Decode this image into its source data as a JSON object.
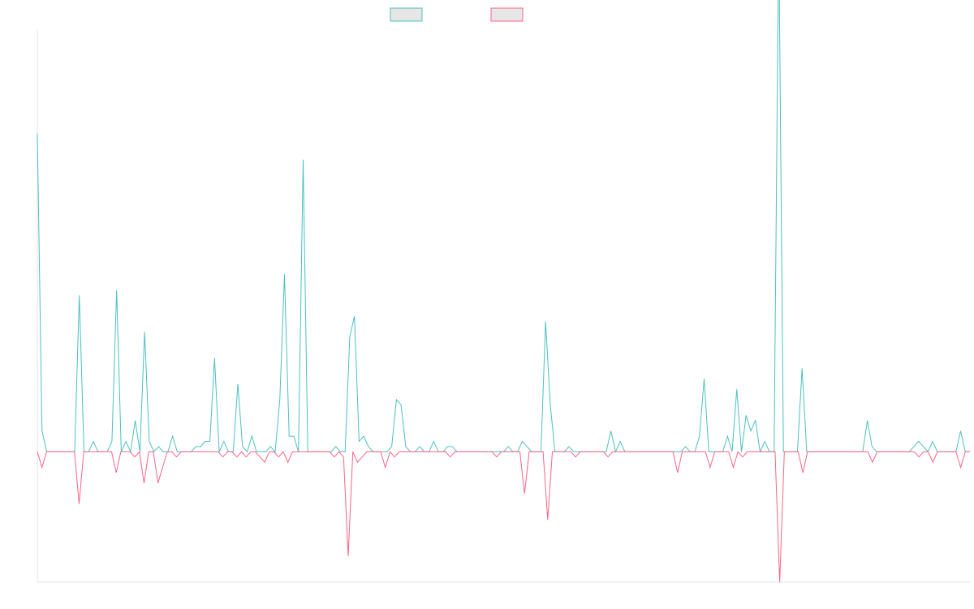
{
  "chart_data": {
    "type": "line",
    "title": "",
    "xlabel": "",
    "ylabel": "",
    "ylim": [
      -25,
      81
    ],
    "grid": false,
    "legend": "top-center",
    "colors": {
      "series_a": "#4bc0c0",
      "series_b": "#ff6384",
      "legend_fill": "#e6e6e6",
      "axis": "#e6e6e6"
    },
    "series": [
      {
        "values": [
          61,
          4,
          0,
          0,
          0,
          0,
          0,
          0,
          0,
          30,
          0,
          0,
          2,
          0,
          0,
          0,
          2,
          31,
          0,
          2,
          0,
          6,
          0,
          23,
          2,
          0,
          1,
          0,
          0,
          3,
          0,
          0,
          0,
          0,
          1,
          1,
          2,
          2,
          18,
          0,
          2,
          0,
          0,
          13,
          1,
          0,
          3,
          0,
          0,
          0,
          1,
          0,
          10,
          34,
          3,
          3,
          0,
          56,
          0,
          0,
          0,
          0,
          0,
          0,
          1,
          0,
          0,
          22,
          26,
          2,
          3,
          1,
          0,
          0,
          0,
          0,
          1,
          10,
          9,
          1,
          0,
          0,
          1,
          0,
          0,
          2,
          0,
          0,
          1,
          1,
          0,
          0,
          0,
          0,
          0,
          0,
          0,
          0,
          0,
          0,
          0,
          1,
          0,
          0,
          2,
          1,
          0,
          0,
          0,
          25,
          9,
          0,
          0,
          0,
          1,
          0,
          0,
          0,
          0,
          0,
          0,
          0,
          0,
          4,
          0,
          2,
          0,
          0,
          0,
          0,
          0,
          0,
          0,
          0,
          0,
          0,
          0,
          0,
          0,
          1,
          0,
          0,
          3,
          14,
          0,
          0,
          0,
          0,
          3,
          0,
          12,
          0,
          7,
          4,
          6,
          0,
          2,
          0,
          0,
          100,
          0,
          0,
          0,
          0,
          16,
          0,
          0,
          0,
          0,
          0,
          0,
          0,
          0,
          0,
          0,
          0,
          0,
          0,
          6,
          1,
          0,
          0,
          0,
          0,
          0,
          0,
          0,
          0,
          1,
          2,
          1,
          0,
          2,
          0,
          0,
          0,
          0,
          0,
          4,
          0,
          0
        ]
      },
      {
        "values": [
          0,
          -3,
          0,
          0,
          0,
          0,
          0,
          0,
          0,
          -10,
          0,
          0,
          0,
          0,
          0,
          0,
          0,
          -4,
          0,
          0,
          0,
          -1,
          0,
          -6,
          0,
          0,
          -6,
          -3,
          0,
          0,
          -1,
          0,
          0,
          0,
          0,
          0,
          0,
          0,
          0,
          0,
          -1,
          0,
          0,
          -1,
          0,
          -1,
          0,
          0,
          -1,
          -2,
          0,
          0,
          -1,
          0,
          -2,
          0,
          0,
          0,
          0,
          0,
          0,
          0,
          0,
          0,
          -1,
          0,
          -1,
          -20,
          0,
          -2,
          -1,
          0,
          0,
          0,
          0,
          -3,
          0,
          -1,
          0,
          0,
          0,
          0,
          0,
          0,
          0,
          0,
          0,
          0,
          0,
          -1,
          0,
          0,
          0,
          0,
          0,
          0,
          0,
          0,
          0,
          -1,
          0,
          0,
          0,
          0,
          0,
          -8,
          0,
          0,
          0,
          0,
          -13,
          0,
          0,
          0,
          0,
          0,
          -1,
          0,
          0,
          0,
          0,
          0,
          0,
          -1,
          0,
          0,
          0,
          0,
          0,
          0,
          0,
          0,
          0,
          0,
          0,
          0,
          0,
          0,
          -4,
          0,
          0,
          0,
          0,
          0,
          0,
          -3,
          0,
          0,
          0,
          0,
          -3,
          0,
          -1,
          0,
          0,
          0,
          0,
          0,
          0,
          0,
          -25,
          0,
          0,
          0,
          0,
          -4,
          0,
          0,
          0,
          0,
          0,
          0,
          0,
          0,
          0,
          0,
          0,
          0,
          0,
          0,
          -2,
          0,
          0,
          0,
          0,
          0,
          0,
          0,
          0,
          0,
          -1,
          0,
          0,
          -2,
          0,
          0,
          0,
          0,
          0,
          -3,
          0,
          0
        ]
      }
    ]
  }
}
